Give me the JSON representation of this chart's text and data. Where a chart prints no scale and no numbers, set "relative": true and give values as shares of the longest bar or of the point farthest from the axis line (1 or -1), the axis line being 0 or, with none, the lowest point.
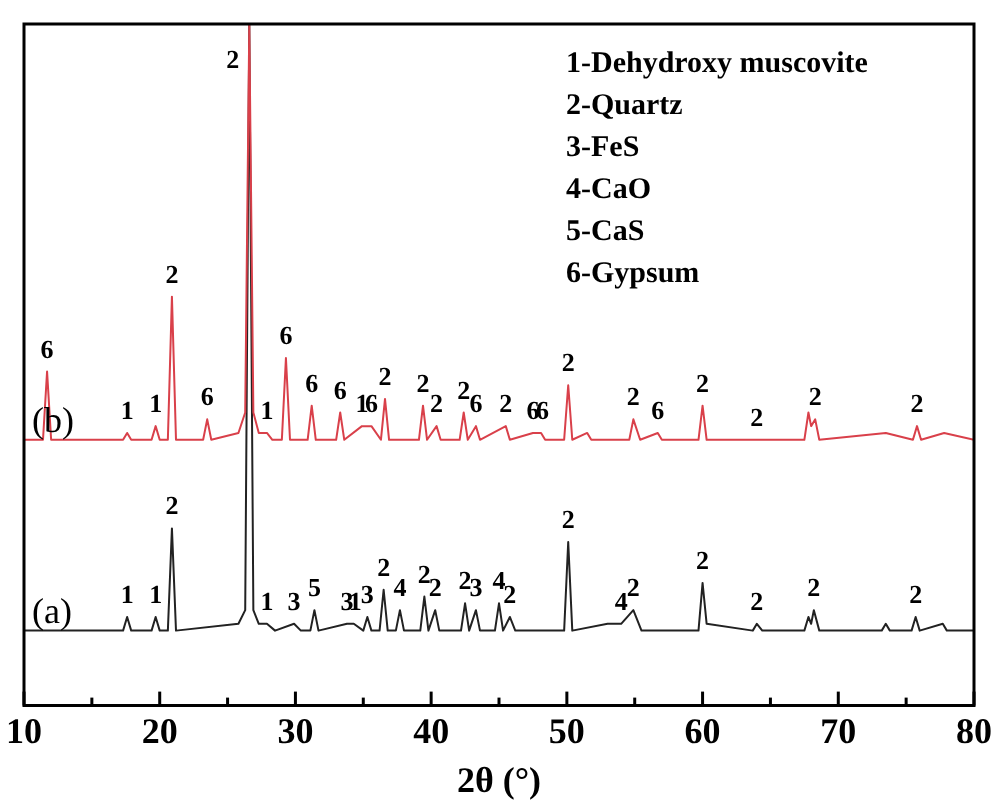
{
  "chart_data": {
    "type": "line",
    "relative": true,
    "xlabel": "2θ (°)",
    "xlim": [
      10,
      80
    ],
    "xticks": [
      10,
      {
        "value": 15,
        "label": null
      },
      20,
      {
        "value": 25,
        "label": null
      },
      30,
      {
        "value": 35,
        "label": null
      },
      40,
      {
        "value": 45,
        "label": null
      },
      50,
      {
        "value": 55,
        "label": null
      },
      60,
      {
        "value": 65,
        "label": null
      },
      70,
      {
        "value": 75,
        "label": null
      },
      80
    ],
    "legend": false,
    "grid": false,
    "marker": "none",
    "series": [
      {
        "name": "(a)",
        "color": "#222222",
        "x": [
          10,
          17.3,
          17.6,
          17.9,
          19.4,
          19.7,
          20.0,
          20.6,
          20.9,
          21.2,
          25.8,
          26.3,
          26.6,
          26.9,
          27.3,
          27.9,
          28.5,
          29.9,
          30.4,
          31.1,
          31.4,
          31.7,
          33.8,
          34.3,
          35.0,
          35.3,
          35.6,
          36.2,
          36.5,
          36.8,
          37.4,
          37.7,
          38.0,
          39.2,
          39.5,
          39.8,
          40.3,
          40.6,
          42.2,
          42.5,
          42.8,
          43.3,
          43.6,
          44.7,
          45.0,
          45.3,
          45.8,
          46.2,
          49.8,
          50.1,
          50.4,
          53.0,
          54.0,
          54.9,
          55.5,
          59.7,
          60.0,
          60.3,
          63.7,
          64.0,
          64.4,
          67.5,
          67.8,
          68.0,
          68.2,
          68.6,
          73.2,
          73.5,
          73.8,
          75.4,
          75.7,
          76.0,
          77.7,
          78.0,
          80
        ],
        "values": [
          0.11,
          0.11,
          0.13,
          0.11,
          0.11,
          0.13,
          0.11,
          0.11,
          0.26,
          0.11,
          0.12,
          0.14,
          1,
          0.14,
          0.12,
          0.12,
          0.11,
          0.12,
          0.11,
          0.11,
          0.14,
          0.11,
          0.12,
          0.12,
          0.11,
          0.13,
          0.11,
          0.11,
          0.17,
          0.11,
          0.11,
          0.14,
          0.11,
          0.11,
          0.16,
          0.11,
          0.14,
          0.11,
          0.11,
          0.15,
          0.11,
          0.14,
          0.11,
          0.11,
          0.15,
          0.11,
          0.13,
          0.11,
          0.11,
          0.24,
          0.11,
          0.12,
          0.12,
          0.14,
          0.11,
          0.11,
          0.18,
          0.12,
          0.11,
          0.12,
          0.11,
          0.11,
          0.13,
          0.12,
          0.14,
          0.11,
          0.11,
          0.12,
          0.11,
          0.11,
          0.13,
          0.11,
          0.12,
          0.11,
          0.11
        ]
      },
      {
        "name": "(b)",
        "color": "#d9404a",
        "x": [
          10,
          11.4,
          11.7,
          12.0,
          17.3,
          17.6,
          17.9,
          19.4,
          19.7,
          20.0,
          20.6,
          20.9,
          21.2,
          23.2,
          23.5,
          23.8,
          25.8,
          26.3,
          26.6,
          26.9,
          27.3,
          27.9,
          28.3,
          29.0,
          29.3,
          29.6,
          30.9,
          31.2,
          31.5,
          33.0,
          33.3,
          33.6,
          34.9,
          35.6,
          36.3,
          36.6,
          36.9,
          39.1,
          39.4,
          39.7,
          40.4,
          40.7,
          42.1,
          42.4,
          42.7,
          43.3,
          43.6,
          45.5,
          45.8,
          47.5,
          48.1,
          48.4,
          49.8,
          50.1,
          50.4,
          51.5,
          51.8,
          54.6,
          54.9,
          55.4,
          56.7,
          57.0,
          59.7,
          60.0,
          60.3,
          64.0,
          67.5,
          67.8,
          68.0,
          68.3,
          68.6,
          73.5,
          75.5,
          75.8,
          76.1,
          77.8,
          80
        ],
        "values": [
          0.39,
          0.39,
          0.49,
          0.39,
          0.39,
          0.4,
          0.39,
          0.39,
          0.41,
          0.39,
          0.39,
          0.6,
          0.39,
          0.39,
          0.42,
          0.39,
          0.4,
          0.43,
          1,
          0.43,
          0.4,
          0.4,
          0.39,
          0.39,
          0.51,
          0.39,
          0.39,
          0.44,
          0.39,
          0.39,
          0.43,
          0.39,
          0.41,
          0.41,
          0.39,
          0.45,
          0.39,
          0.39,
          0.44,
          0.39,
          0.41,
          0.39,
          0.39,
          0.43,
          0.39,
          0.41,
          0.39,
          0.41,
          0.39,
          0.4,
          0.4,
          0.39,
          0.39,
          0.47,
          0.39,
          0.4,
          0.39,
          0.39,
          0.42,
          0.39,
          0.4,
          0.39,
          0.39,
          0.44,
          0.39,
          0.39,
          0.39,
          0.43,
          0.41,
          0.42,
          0.39,
          0.4,
          0.39,
          0.41,
          0.39,
          0.4,
          0.39
        ]
      }
    ],
    "annotations": [
      "1-Dehydroxy muscovite",
      "2-Quartz",
      "3-FeS",
      "4-CaO",
      "5-CaS",
      "6-Gypsum",
      {
        "text": "1",
        "x": 17.6,
        "y": 0.13
      },
      {
        "text": "1",
        "x": 19.7,
        "y": 0.13
      },
      {
        "text": "2",
        "x": 20.9,
        "y": 0.26
      },
      {
        "text": "1",
        "x": 27.9,
        "y": 0.12
      },
      {
        "text": "3",
        "x": 29.9,
        "y": 0.12
      },
      {
        "text": "5",
        "x": 31.4,
        "y": 0.14
      },
      {
        "text": "3",
        "x": 33.8,
        "y": 0.12
      },
      {
        "text": "1",
        "x": 34.4,
        "y": 0.12
      },
      {
        "text": "3",
        "x": 35.3,
        "y": 0.13
      },
      {
        "text": "2",
        "x": 36.5,
        "y": 0.17
      },
      {
        "text": "4",
        "x": 37.7,
        "y": 0.14
      },
      {
        "text": "2",
        "x": 39.5,
        "y": 0.16
      },
      {
        "text": "2",
        "x": 40.3,
        "y": 0.14
      },
      {
        "text": "2",
        "x": 42.5,
        "y": 0.15
      },
      {
        "text": "3",
        "x": 43.3,
        "y": 0.14
      },
      {
        "text": "4",
        "x": 45.0,
        "y": 0.15
      },
      {
        "text": "2",
        "x": 45.8,
        "y": 0.13
      },
      {
        "text": "2",
        "x": 50.1,
        "y": 0.24
      },
      {
        "text": "4",
        "x": 54.0,
        "y": 0.12
      },
      {
        "text": "2",
        "x": 54.9,
        "y": 0.14
      },
      {
        "text": "2",
        "x": 60.0,
        "y": 0.18
      },
      {
        "text": "2",
        "x": 64.0,
        "y": 0.12
      },
      {
        "text": "2",
        "x": 68.2,
        "y": 0.14
      },
      {
        "text": "2",
        "x": 75.7,
        "y": 0.13
      },
      {
        "text": "6",
        "x": 11.7,
        "y": 0.49
      },
      {
        "text": "1",
        "x": 17.6,
        "y": 0.4
      },
      {
        "text": "1",
        "x": 19.7,
        "y": 0.41
      },
      {
        "text": "2",
        "x": 20.9,
        "y": 0.6
      },
      {
        "text": "6",
        "x": 23.5,
        "y": 0.42
      },
      {
        "text": "2",
        "x": 26.6,
        "y": 1
      },
      {
        "text": "1",
        "x": 27.9,
        "y": 0.4
      },
      {
        "text": "6",
        "x": 29.3,
        "y": 0.51
      },
      {
        "text": "6",
        "x": 31.2,
        "y": 0.44
      },
      {
        "text": "6",
        "x": 33.3,
        "y": 0.43
      },
      {
        "text": "1",
        "x": 34.9,
        "y": 0.41
      },
      {
        "text": "6",
        "x": 35.6,
        "y": 0.41
      },
      {
        "text": "2",
        "x": 36.6,
        "y": 0.45
      },
      {
        "text": "2",
        "x": 39.4,
        "y": 0.44
      },
      {
        "text": "2",
        "x": 40.4,
        "y": 0.41
      },
      {
        "text": "2",
        "x": 42.4,
        "y": 0.43
      },
      {
        "text": "6",
        "x": 43.3,
        "y": 0.41
      },
      {
        "text": "2",
        "x": 45.5,
        "y": 0.41
      },
      {
        "text": "6",
        "x": 47.5,
        "y": 0.4
      },
      {
        "text": "6",
        "x": 48.2,
        "y": 0.4
      },
      {
        "text": "2",
        "x": 50.1,
        "y": 0.47
      },
      {
        "text": "2",
        "x": 54.9,
        "y": 0.42
      },
      {
        "text": "6",
        "x": 56.7,
        "y": 0.4
      },
      {
        "text": "2",
        "x": 60.0,
        "y": 0.44
      },
      {
        "text": "2",
        "x": 64.0,
        "y": 0.39
      },
      {
        "text": "2",
        "x": 68.3,
        "y": 0.42
      },
      {
        "text": "2",
        "x": 75.8,
        "y": 0.41
      }
    ]
  }
}
